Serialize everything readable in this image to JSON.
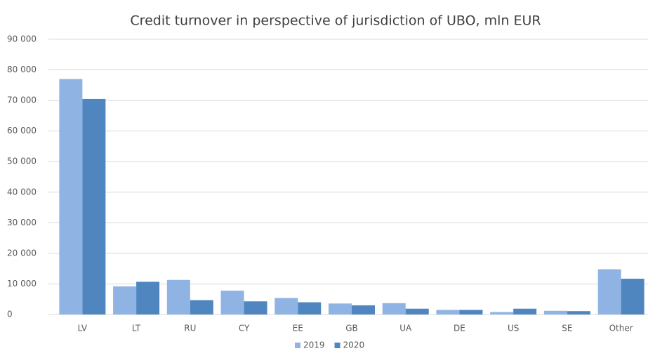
{
  "chart_data": {
    "type": "bar",
    "title": "Credit turnover in perspective of jurisdiction of UBO, mln EUR",
    "categories": [
      "LV",
      "LT",
      "RU",
      "CY",
      "EE",
      "GB",
      "UA",
      "DE",
      "US",
      "SE",
      "Other"
    ],
    "series": [
      {
        "name": "2019",
        "color": "#8fb4e3",
        "values": [
          77000,
          9200,
          11300,
          7800,
          5400,
          3600,
          3700,
          1500,
          800,
          1200,
          14800
        ]
      },
      {
        "name": "2020",
        "color": "#4f86c0",
        "values": [
          70500,
          10700,
          4700,
          4300,
          4000,
          3000,
          1900,
          1500,
          1900,
          1100,
          11700
        ]
      }
    ],
    "ylim": [
      0,
      90000
    ],
    "yticks": [
      0,
      {
        "value": 10000,
        "label": "10 000"
      },
      {
        "value": 20000,
        "label": "20 000"
      },
      {
        "value": 30000,
        "label": "30 000"
      },
      {
        "value": 40000,
        "label": "40 000"
      },
      {
        "value": 50000,
        "label": "50 000"
      },
      {
        "value": 60000,
        "label": "60 000"
      },
      {
        "value": 70000,
        "label": "70 000"
      },
      {
        "value": 80000,
        "label": "80 000"
      },
      {
        "value": 90000,
        "label": "90 000"
      }
    ],
    "grid": true,
    "legend": "bottom"
  }
}
